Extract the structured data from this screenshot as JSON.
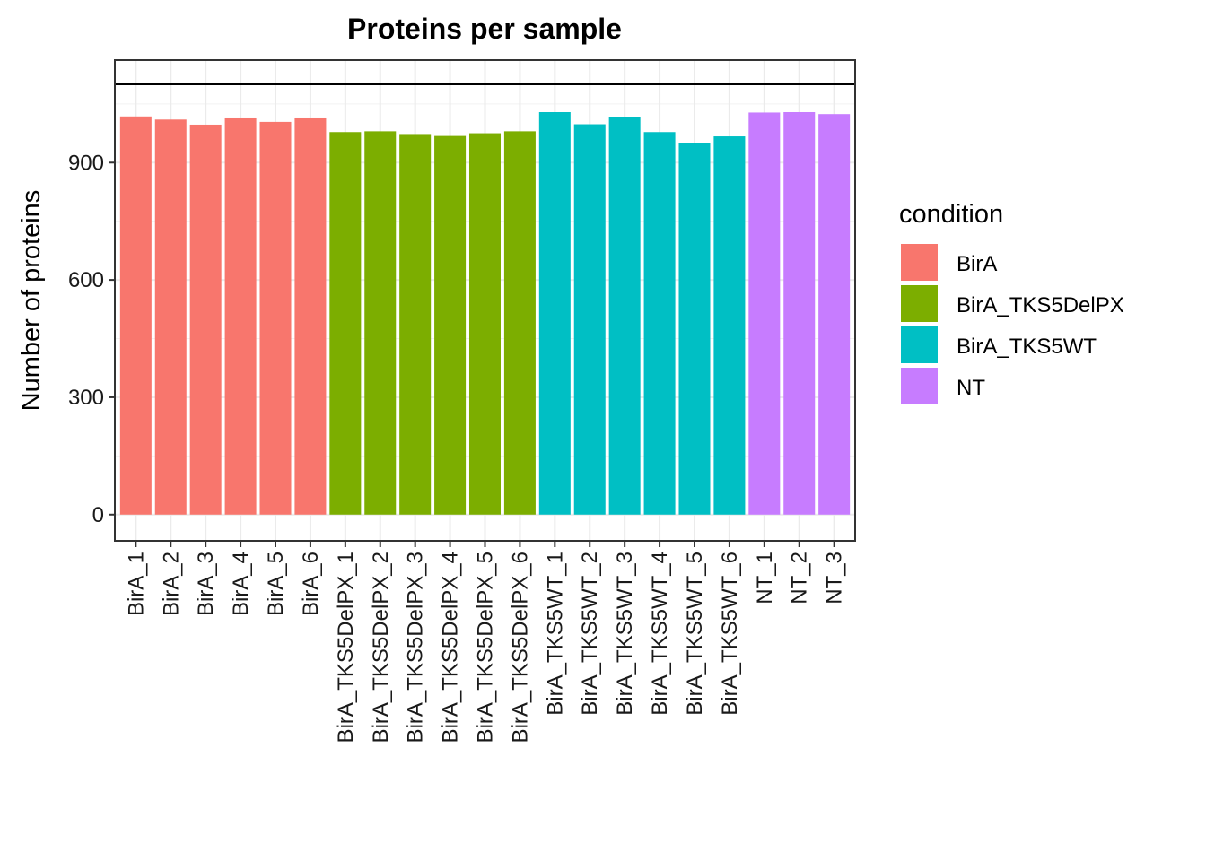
{
  "chart_data": {
    "type": "bar",
    "title": "Proteins per sample",
    "xlabel": "",
    "ylabel": "Number of proteins",
    "ylim": [
      0,
      1100
    ],
    "yticks": [
      0,
      300,
      600,
      900
    ],
    "reference_line": 1100,
    "grid": true,
    "legend": {
      "title": "condition",
      "position": "right",
      "entries": [
        {
          "name": "BirA",
          "color": "#F8766D"
        },
        {
          "name": "BirA_TKS5DelPX",
          "color": "#7CAE00"
        },
        {
          "name": "BirA_TKS5WT",
          "color": "#00BFC4"
        },
        {
          "name": "NT",
          "color": "#C77CFF"
        }
      ]
    },
    "categories": [
      "BirA_1",
      "BirA_2",
      "BirA_3",
      "BirA_4",
      "BirA_5",
      "BirA_6",
      "BirA_TKS5DelPX_1",
      "BirA_TKS5DelPX_2",
      "BirA_TKS5DelPX_3",
      "BirA_TKS5DelPX_4",
      "BirA_TKS5DelPX_5",
      "BirA_TKS5DelPX_6",
      "BirA_TKS5WT_1",
      "BirA_TKS5WT_2",
      "BirA_TKS5WT_3",
      "BirA_TKS5WT_4",
      "BirA_TKS5WT_5",
      "BirA_TKS5WT_6",
      "NT_1",
      "NT_2",
      "NT_3"
    ],
    "conditions": [
      "BirA",
      "BirA",
      "BirA",
      "BirA",
      "BirA",
      "BirA",
      "BirA_TKS5DelPX",
      "BirA_TKS5DelPX",
      "BirA_TKS5DelPX",
      "BirA_TKS5DelPX",
      "BirA_TKS5DelPX",
      "BirA_TKS5DelPX",
      "BirA_TKS5WT",
      "BirA_TKS5WT",
      "BirA_TKS5WT",
      "BirA_TKS5WT",
      "BirA_TKS5WT",
      "BirA_TKS5WT",
      "NT",
      "NT",
      "NT"
    ],
    "values": [
      1018,
      1010,
      997,
      1013,
      1004,
      1013,
      978,
      980,
      973,
      968,
      975,
      980,
      1029,
      998,
      1017,
      978,
      951,
      967,
      1028,
      1029,
      1024
    ]
  }
}
